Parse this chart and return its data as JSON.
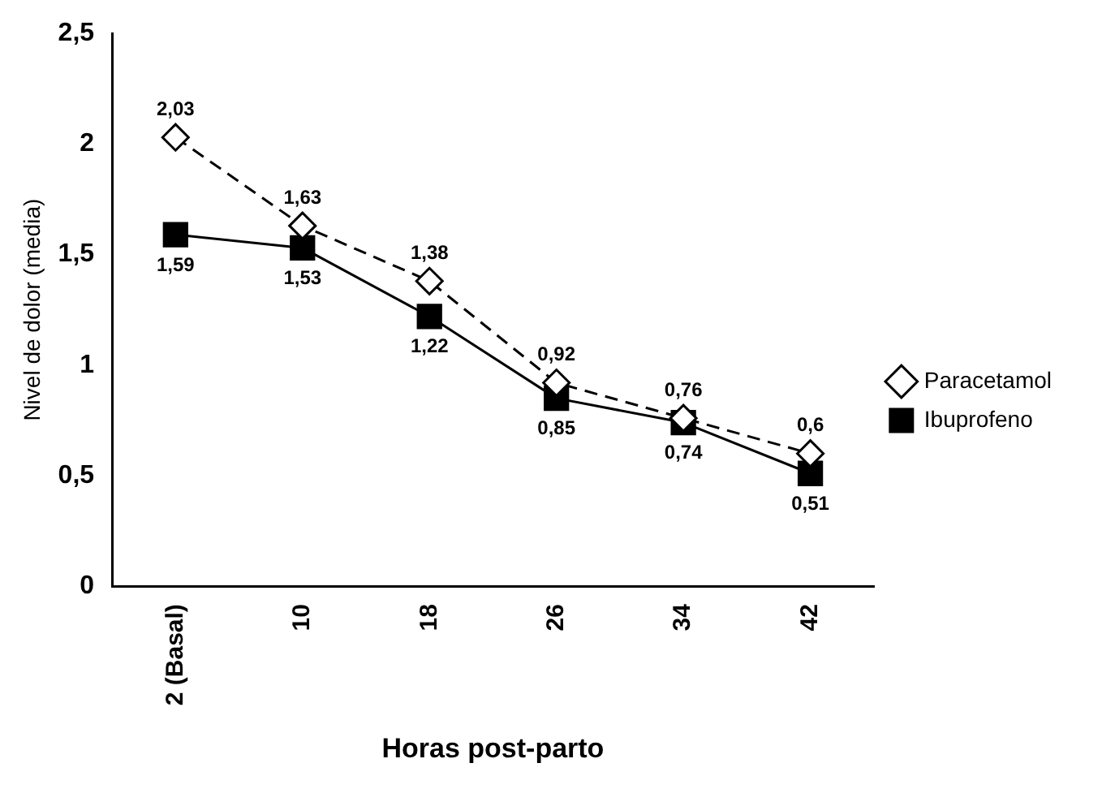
{
  "chart_data": {
    "type": "line",
    "xlabel": "Horas post-parto",
    "ylabel": "Nivel de dolor (media)",
    "categories": [
      "2 (Basal)",
      "10",
      "18",
      "26",
      "34",
      "42"
    ],
    "series": [
      {
        "name": "Paracetamol",
        "color": "#000000",
        "marker": "diamond",
        "line_style": "dashed",
        "values": [
          2.03,
          1.63,
          1.38,
          0.92,
          0.76,
          0.6
        ],
        "value_labels": [
          "2,03",
          "1,63",
          "1,38",
          "0,92",
          "0,76",
          "0,6"
        ]
      },
      {
        "name": "Ibuprofeno",
        "color": "#000000",
        "marker": "square",
        "line_style": "solid",
        "values": [
          1.59,
          1.53,
          1.22,
          0.85,
          0.74,
          0.51
        ],
        "value_labels": [
          "1,59",
          "1,53",
          "1,22",
          "0,85",
          "0,74",
          "0,51"
        ]
      }
    ],
    "ylim": [
      0,
      2.5
    ],
    "yticks": [
      0,
      {
        "value": 0.5,
        "label": "0,5"
      },
      1,
      {
        "value": 1.5,
        "label": "1,5"
      },
      2,
      {
        "value": 2.5,
        "label": "2,5"
      }
    ],
    "grid": false,
    "legend": "right"
  }
}
